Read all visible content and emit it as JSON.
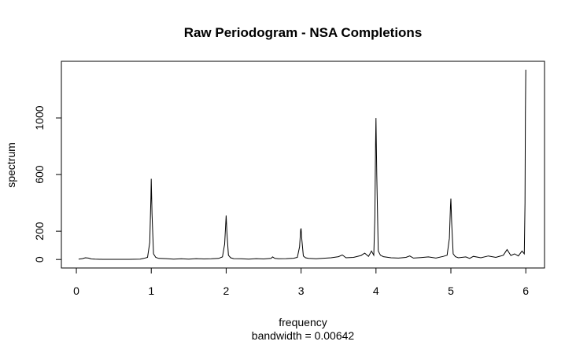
{
  "chart_data": {
    "type": "line",
    "title": "Raw Periodogram - NSA Completions",
    "xlabel": "frequency",
    "xlabel_sub": "bandwidth = 0.00642",
    "ylabel": "spectrum",
    "xlim": [
      -0.2,
      6.25
    ],
    "ylim": [
      -60,
      1400
    ],
    "x_ticks": [
      0,
      1,
      2,
      3,
      4,
      5,
      6
    ],
    "y_ticks": [
      0,
      200,
      600,
      1000
    ],
    "grid": false,
    "legend": "none",
    "line_color": "#000000",
    "series": [
      {
        "points": [
          [
            0.03,
            3
          ],
          [
            0.08,
            6
          ],
          [
            0.12,
            12
          ],
          [
            0.16,
            10
          ],
          [
            0.2,
            4
          ],
          [
            0.25,
            2
          ],
          [
            0.35,
            1
          ],
          [
            0.5,
            1
          ],
          [
            0.7,
            1
          ],
          [
            0.85,
            3
          ],
          [
            0.9,
            8
          ],
          [
            0.95,
            15
          ],
          [
            0.98,
            120
          ],
          [
            0.995,
            440
          ],
          [
            1.0,
            570
          ],
          [
            1.01,
            320
          ],
          [
            1.03,
            40
          ],
          [
            1.06,
            15
          ],
          [
            1.1,
            8
          ],
          [
            1.2,
            6
          ],
          [
            1.3,
            3
          ],
          [
            1.4,
            5
          ],
          [
            1.5,
            2
          ],
          [
            1.6,
            6
          ],
          [
            1.7,
            4
          ],
          [
            1.8,
            5
          ],
          [
            1.9,
            8
          ],
          [
            1.95,
            18
          ],
          [
            1.98,
            110
          ],
          [
            1.995,
            270
          ],
          [
            2.0,
            310
          ],
          [
            2.01,
            190
          ],
          [
            2.03,
            30
          ],
          [
            2.06,
            12
          ],
          [
            2.1,
            6
          ],
          [
            2.2,
            5
          ],
          [
            2.3,
            3
          ],
          [
            2.4,
            6
          ],
          [
            2.5,
            4
          ],
          [
            2.6,
            8
          ],
          [
            2.62,
            18
          ],
          [
            2.65,
            8
          ],
          [
            2.7,
            5
          ],
          [
            2.8,
            6
          ],
          [
            2.9,
            9
          ],
          [
            2.95,
            15
          ],
          [
            2.98,
            90
          ],
          [
            2.995,
            210
          ],
          [
            3.0,
            220
          ],
          [
            3.01,
            140
          ],
          [
            3.03,
            25
          ],
          [
            3.06,
            12
          ],
          [
            3.1,
            8
          ],
          [
            3.2,
            5
          ],
          [
            3.3,
            9
          ],
          [
            3.4,
            12
          ],
          [
            3.5,
            20
          ],
          [
            3.55,
            32
          ],
          [
            3.6,
            12
          ],
          [
            3.7,
            15
          ],
          [
            3.8,
            28
          ],
          [
            3.85,
            45
          ],
          [
            3.9,
            22
          ],
          [
            3.94,
            60
          ],
          [
            3.97,
            30
          ],
          [
            3.985,
            300
          ],
          [
            3.995,
            820
          ],
          [
            4.0,
            1000
          ],
          [
            4.01,
            600
          ],
          [
            4.03,
            60
          ],
          [
            4.06,
            30
          ],
          [
            4.1,
            20
          ],
          [
            4.2,
            12
          ],
          [
            4.3,
            10
          ],
          [
            4.4,
            15
          ],
          [
            4.45,
            25
          ],
          [
            4.5,
            10
          ],
          [
            4.6,
            14
          ],
          [
            4.7,
            18
          ],
          [
            4.8,
            10
          ],
          [
            4.9,
            22
          ],
          [
            4.95,
            30
          ],
          [
            4.98,
            150
          ],
          [
            4.995,
            380
          ],
          [
            5.0,
            430
          ],
          [
            5.01,
            260
          ],
          [
            5.03,
            40
          ],
          [
            5.06,
            20
          ],
          [
            5.1,
            12
          ],
          [
            5.2,
            18
          ],
          [
            5.25,
            8
          ],
          [
            5.3,
            22
          ],
          [
            5.4,
            12
          ],
          [
            5.5,
            25
          ],
          [
            5.6,
            15
          ],
          [
            5.7,
            30
          ],
          [
            5.75,
            70
          ],
          [
            5.8,
            28
          ],
          [
            5.85,
            40
          ],
          [
            5.9,
            25
          ],
          [
            5.95,
            60
          ],
          [
            5.98,
            40
          ],
          [
            5.99,
            400
          ],
          [
            5.995,
            1030
          ],
          [
            6.0,
            1340
          ]
        ]
      }
    ]
  }
}
